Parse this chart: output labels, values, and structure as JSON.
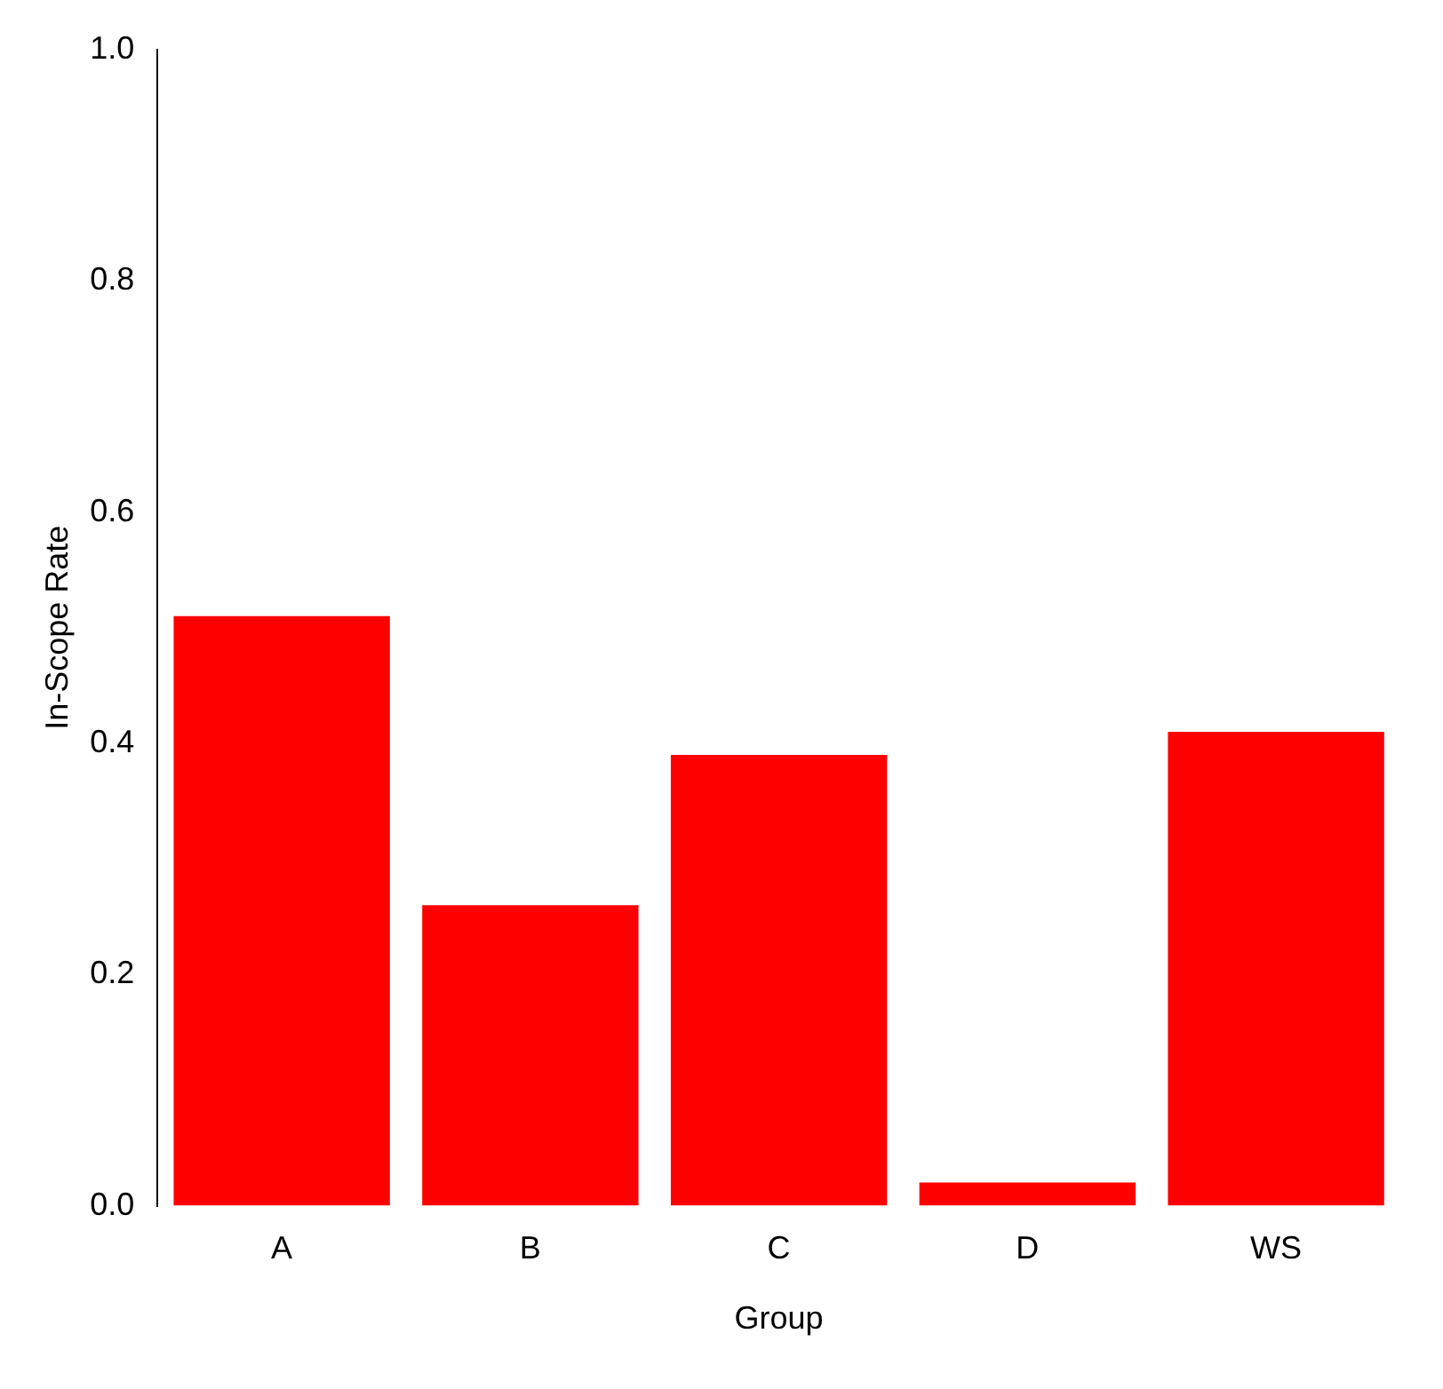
{
  "chart_data": {
    "type": "bar",
    "xlabel": "Group",
    "ylabel": "In-Scope Rate",
    "categories": [
      "A",
      "B",
      "C",
      "D",
      "WS"
    ],
    "values": [
      0.51,
      0.26,
      0.39,
      0.02,
      0.41
    ],
    "color": "#ff0000",
    "ylim": [
      0,
      1
    ],
    "yticks": [
      {
        "value": 0,
        "label": "0.0"
      },
      {
        "value": 0.2,
        "label": "0.2"
      },
      {
        "value": 0.4,
        "label": "0.4"
      },
      {
        "value": 0.6,
        "label": "0.6"
      },
      {
        "value": 0.8,
        "label": "0.8"
      },
      {
        "value": 1,
        "label": "1.0"
      }
    ],
    "grid": false
  }
}
